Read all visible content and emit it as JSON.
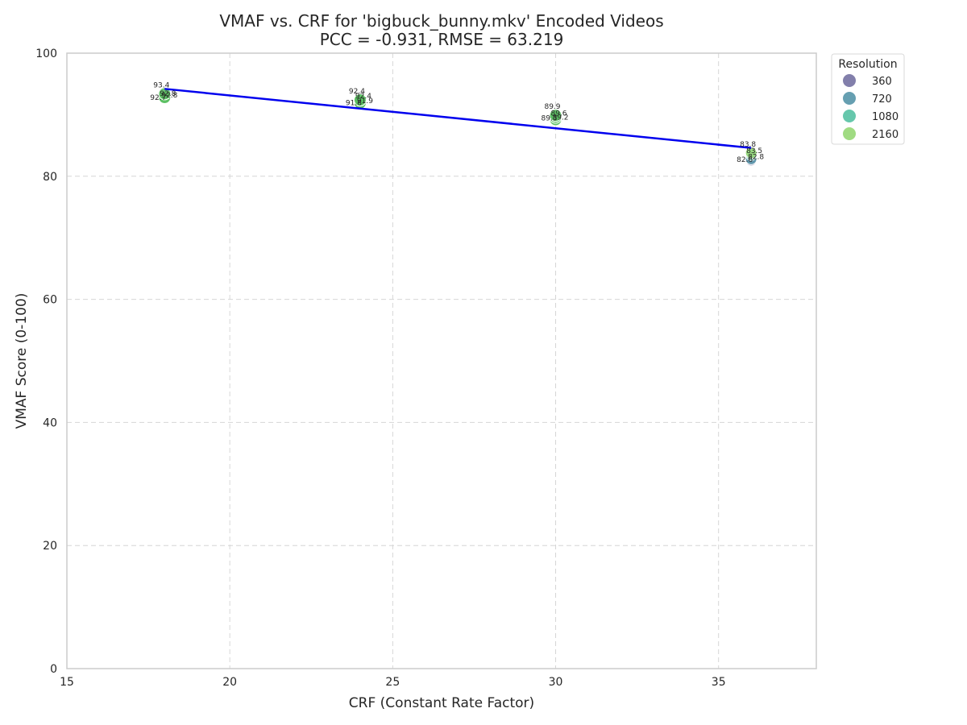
{
  "chart_data": {
    "type": "scatter",
    "title_line1": "VMAF vs. CRF for 'bigbuck_bunny.mkv' Encoded Videos",
    "title_line2": "PCC = -0.931, RMSE = 63.219",
    "xlabel": "CRF (Constant Rate Factor)",
    "ylabel": "VMAF Score (0-100)",
    "xlim": [
      15,
      38
    ],
    "ylim": [
      0,
      100
    ],
    "xticks": [
      15,
      20,
      25,
      30,
      35
    ],
    "yticks": [
      0,
      20,
      40,
      60,
      80,
      100
    ],
    "grid": true,
    "legend": {
      "title": "Resolution",
      "placement": "outside-top-right",
      "entries": [
        {
          "label": "360",
          "color": "#7b78a6"
        },
        {
          "label": "720",
          "color": "#5e9aad"
        },
        {
          "label": "1080",
          "color": "#5ec4a8"
        },
        {
          "label": "2160",
          "color": "#9bd97b"
        }
      ]
    },
    "point_color": "#5cc063",
    "regression_line": {
      "x": [
        18,
        36
      ],
      "y": [
        94.2,
        84.6
      ],
      "color": "#0000ee"
    },
    "series": [
      {
        "name": "360",
        "color": "#7b78a6",
        "points": [
          {
            "x": 18,
            "y": 92.7,
            "label": "92.7"
          },
          {
            "x": 24,
            "y": 91.8,
            "label": "91.8"
          },
          {
            "x": 30,
            "y": 89.3,
            "label": "89.3"
          },
          {
            "x": 36,
            "y": 82.6,
            "label": "82.6"
          }
        ]
      },
      {
        "name": "720",
        "color": "#5e9aad",
        "points": [
          {
            "x": 18,
            "y": 92.8,
            "label": "92.8"
          },
          {
            "x": 24,
            "y": 91.9,
            "label": "91.9"
          },
          {
            "x": 30,
            "y": 89.2,
            "label": "89.2"
          },
          {
            "x": 36,
            "y": 82.8,
            "label": "82.8"
          }
        ]
      },
      {
        "name": "1080",
        "color": "#5ec4a8",
        "points": [
          {
            "x": 18,
            "y": 92.8,
            "label": "92.8"
          },
          {
            "x": 24,
            "y": 92.4,
            "label": "92.4"
          },
          {
            "x": 30,
            "y": 89.6,
            "label": "89.6"
          },
          {
            "x": 36,
            "y": 83.5,
            "label": "83.5"
          }
        ]
      },
      {
        "name": "2160",
        "color": "#9bd97b",
        "points": [
          {
            "x": 18,
            "y": 93.4,
            "label": "93.4"
          },
          {
            "x": 24,
            "y": 92.4,
            "label": "92.4"
          },
          {
            "x": 30,
            "y": 89.9,
            "label": "89.9"
          },
          {
            "x": 36,
            "y": 83.8,
            "label": "83.8"
          }
        ]
      }
    ]
  }
}
